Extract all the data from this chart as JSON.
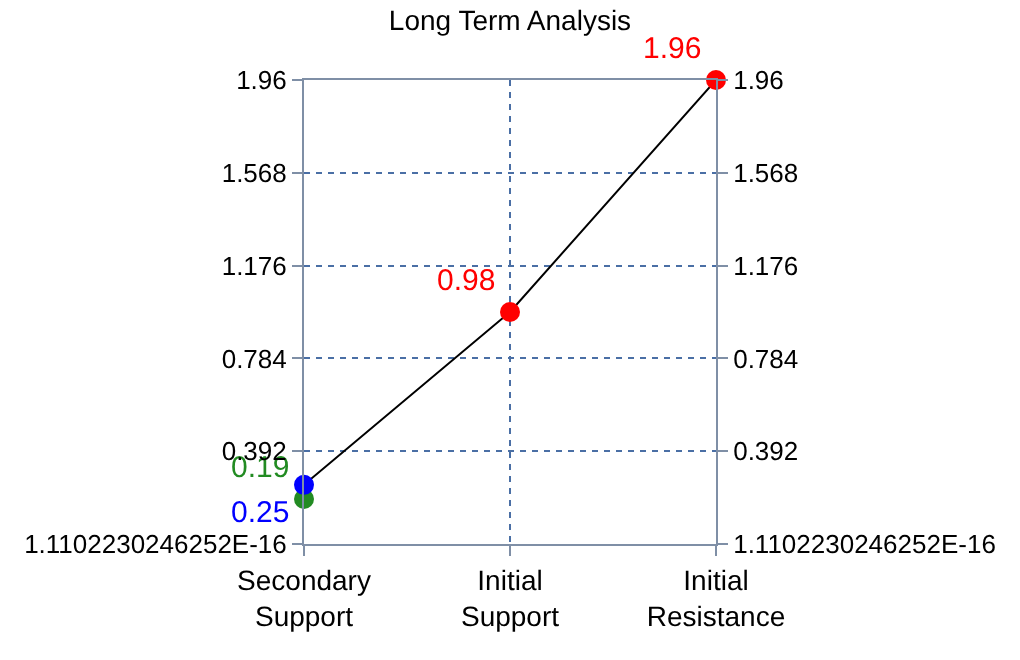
{
  "chart_data": {
    "type": "scatter",
    "title": "Long Term Analysis",
    "categories": [
      "Secondary\nSupport",
      "Initial\nSupport",
      "Initial\nResistance"
    ],
    "ylim": [
      0,
      1.96
    ],
    "yticks": [
      {
        "value": 0,
        "label": "1.1102230246252E-16"
      },
      0.392,
      0.784,
      1.176,
      1.568,
      1.96
    ],
    "y2lim": [
      0,
      1.96
    ],
    "y2ticks": [
      {
        "value": 0,
        "label": "1.1102230246252E-16"
      },
      0.392,
      0.784,
      1.176,
      1.568,
      1.96
    ],
    "grid": true,
    "marker": "circle",
    "series": [
      {
        "type": "line",
        "color": "#000000",
        "values": [
          0.25,
          0.98,
          1.96
        ],
        "marker": "none"
      },
      {
        "color": "#228b22",
        "values": [
          0.19,
          null,
          null
        ],
        "value_labels": [
          "0.19",
          null,
          null
        ]
      },
      {
        "color": "#0000ff",
        "values": [
          0.25,
          null,
          null
        ],
        "value_labels": [
          "0.25",
          null,
          null
        ]
      },
      {
        "color": "#ff0000",
        "values": [
          null,
          0.98,
          1.96
        ],
        "value_labels": [
          null,
          "0.98",
          "1.96"
        ]
      }
    ]
  }
}
